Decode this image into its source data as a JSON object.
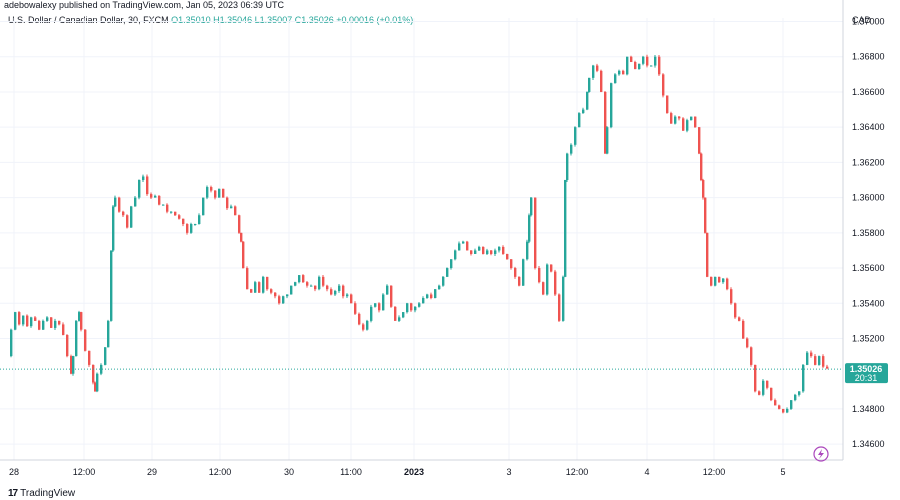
{
  "attribution": "adebowalexy published on TradingView.com, Jan 05, 2023 06:39 UTC",
  "legend": {
    "symbol": "U.S. Dollar / Canadian Dollar, 30, FXCM",
    "ohlc": "O1.35010  H1.35046  L1.35007  C1.35026  +0.00016 (+0.01%)"
  },
  "currency": "CAD",
  "footer": {
    "brand": "TradingView",
    "icon": "tradingview-logo-icon"
  },
  "last_price": {
    "value": "1.35026",
    "countdown": "20:31"
  },
  "colors": {
    "up": "#26a69a",
    "down": "#ef5350",
    "grid": "#f0f3fa",
    "price_label": "#26a69a",
    "lightning": "#ab47bc"
  },
  "lightning_icon": "lightning-bolt-icon",
  "chart_data": {
    "type": "candlestick",
    "title": "U.S. Dollar / Canadian Dollar, 30, FXCM",
    "ylabel": "CAD",
    "ylim": [
      1.3451,
      1.3702
    ],
    "y_ticks": [
      "1.37000",
      "1.36800",
      "1.36600",
      "1.36400",
      "1.36200",
      "1.36000",
      "1.35800",
      "1.35600",
      "1.35400",
      "1.35200",
      "1.34800",
      "1.34600"
    ],
    "x_ticks": [
      "28",
      "12:00",
      "29",
      "12:00",
      "30",
      "11:00",
      "2023",
      "3",
      "12:00",
      "4",
      "12:00",
      "5"
    ],
    "grid": true,
    "series": [
      {
        "values": [
          [
            0,
            1.351
          ],
          [
            2,
            1.3525
          ],
          [
            6,
            1.3535
          ],
          [
            10,
            1.3528
          ],
          [
            14,
            1.3533
          ],
          [
            18,
            1.3527
          ],
          [
            22,
            1.3532
          ],
          [
            26,
            1.353
          ],
          [
            30,
            1.3525
          ],
          [
            34,
            1.353
          ],
          [
            38,
            1.3532
          ],
          [
            42,
            1.3526
          ],
          [
            46,
            1.353
          ],
          [
            50,
            1.3528
          ],
          [
            54,
            1.3522
          ],
          [
            58,
            1.351
          ],
          [
            62,
            1.35
          ],
          [
            64,
            1.351
          ],
          [
            67,
            1.353
          ],
          [
            70,
            1.3535
          ],
          [
            72,
            1.3525
          ],
          [
            76,
            1.3513
          ],
          [
            80,
            1.3505
          ],
          [
            84,
            1.3495
          ],
          [
            86,
            1.349
          ],
          [
            88,
            1.35
          ],
          [
            92,
            1.3505
          ],
          [
            96,
            1.3515
          ],
          [
            99,
            1.353
          ],
          [
            102,
            1.357
          ],
          [
            104,
            1.3595
          ],
          [
            106,
            1.36
          ],
          [
            110,
            1.3592
          ],
          [
            114,
            1.359
          ],
          [
            118,
            1.3583
          ],
          [
            122,
            1.3595
          ],
          [
            126,
            1.36
          ],
          [
            130,
            1.361
          ],
          [
            134,
            1.3612
          ],
          [
            138,
            1.3602
          ],
          [
            142,
            1.36
          ],
          [
            146,
            1.3601
          ],
          [
            150,
            1.3596
          ],
          [
            154,
            1.3596
          ],
          [
            158,
            1.3592
          ],
          [
            162,
            1.3592
          ],
          [
            166,
            1.359
          ],
          [
            170,
            1.3588
          ],
          [
            174,
            1.3585
          ],
          [
            178,
            1.358
          ],
          [
            182,
            1.3585
          ],
          [
            186,
            1.3585
          ],
          [
            190,
            1.359
          ],
          [
            194,
            1.36
          ],
          [
            198,
            1.3606
          ],
          [
            202,
            1.3604
          ],
          [
            206,
            1.36
          ],
          [
            210,
            1.3605
          ],
          [
            214,
            1.36
          ],
          [
            218,
            1.3594
          ],
          [
            222,
            1.3595
          ],
          [
            226,
            1.359
          ],
          [
            230,
            1.358
          ],
          [
            232,
            1.3575
          ],
          [
            234,
            1.356
          ],
          [
            238,
            1.3548
          ],
          [
            242,
            1.3546
          ],
          [
            246,
            1.3552
          ],
          [
            250,
            1.3546
          ],
          [
            254,
            1.3555
          ],
          [
            258,
            1.3548
          ],
          [
            262,
            1.3546
          ],
          [
            266,
            1.3544
          ],
          [
            270,
            1.354
          ],
          [
            274,
            1.3544
          ],
          [
            278,
            1.3545
          ],
          [
            282,
            1.355
          ],
          [
            286,
            1.3552
          ],
          [
            290,
            1.3556
          ],
          [
            294,
            1.3552
          ],
          [
            298,
            1.355
          ],
          [
            302,
            1.355
          ],
          [
            306,
            1.3548
          ],
          [
            310,
            1.3555
          ],
          [
            314,
            1.355
          ],
          [
            318,
            1.3548
          ],
          [
            322,
            1.3545
          ],
          [
            326,
            1.3547
          ],
          [
            330,
            1.355
          ],
          [
            334,
            1.3544
          ],
          [
            338,
            1.3545
          ],
          [
            342,
            1.354
          ],
          [
            346,
            1.3534
          ],
          [
            350,
            1.3528
          ],
          [
            354,
            1.3525
          ],
          [
            358,
            1.353
          ],
          [
            362,
            1.3538
          ],
          [
            366,
            1.354
          ],
          [
            370,
            1.3536
          ],
          [
            374,
            1.3545
          ],
          [
            378,
            1.355
          ],
          [
            382,
            1.3538
          ],
          [
            386,
            1.353
          ],
          [
            390,
            1.3532
          ],
          [
            394,
            1.3535
          ],
          [
            398,
            1.354
          ],
          [
            402,
            1.3536
          ],
          [
            406,
            1.3538
          ],
          [
            410,
            1.354
          ],
          [
            414,
            1.3543
          ],
          [
            418,
            1.3545
          ],
          [
            422,
            1.3543
          ],
          [
            426,
            1.3548
          ],
          [
            430,
            1.355
          ],
          [
            434,
            1.3555
          ],
          [
            438,
            1.356
          ],
          [
            442,
            1.3565
          ],
          [
            446,
            1.357
          ],
          [
            450,
            1.3574
          ],
          [
            454,
            1.3575
          ],
          [
            458,
            1.357
          ],
          [
            462,
            1.3568
          ],
          [
            466,
            1.357
          ],
          [
            470,
            1.3572
          ],
          [
            474,
            1.3568
          ],
          [
            478,
            1.357
          ],
          [
            482,
            1.3568
          ],
          [
            486,
            1.357
          ],
          [
            490,
            1.3572
          ],
          [
            494,
            1.3568
          ],
          [
            498,
            1.3565
          ],
          [
            502,
            1.356
          ],
          [
            506,
            1.3555
          ],
          [
            510,
            1.355
          ],
          [
            514,
            1.3565
          ],
          [
            518,
            1.3575
          ],
          [
            520,
            1.359
          ],
          [
            522,
            1.36
          ],
          [
            526,
            1.356
          ],
          [
            530,
            1.3552
          ],
          [
            534,
            1.3545
          ],
          [
            538,
            1.3562
          ],
          [
            542,
            1.3558
          ],
          [
            546,
            1.3545
          ],
          [
            550,
            1.353
          ],
          [
            554,
            1.3555
          ],
          [
            556,
            1.361
          ],
          [
            558,
            1.3625
          ],
          [
            562,
            1.363
          ],
          [
            566,
            1.364
          ],
          [
            570,
            1.3648
          ],
          [
            574,
            1.365
          ],
          [
            578,
            1.366
          ],
          [
            580,
            1.3668
          ],
          [
            584,
            1.3675
          ],
          [
            588,
            1.3672
          ],
          [
            592,
            1.366
          ],
          [
            596,
            1.3625
          ],
          [
            598,
            1.364
          ],
          [
            602,
            1.3665
          ],
          [
            606,
            1.367
          ],
          [
            610,
            1.3672
          ],
          [
            614,
            1.367
          ],
          [
            618,
            1.368
          ],
          [
            622,
            1.3677
          ],
          [
            626,
            1.3673
          ],
          [
            630,
            1.3676
          ],
          [
            634,
            1.368
          ],
          [
            638,
            1.3675
          ],
          [
            642,
            1.3675
          ],
          [
            646,
            1.368
          ],
          [
            650,
            1.367
          ],
          [
            654,
            1.3658
          ],
          [
            658,
            1.3648
          ],
          [
            662,
            1.3642
          ],
          [
            666,
            1.3646
          ],
          [
            670,
            1.3645
          ],
          [
            674,
            1.3638
          ],
          [
            678,
            1.3644
          ],
          [
            682,
            1.3646
          ],
          [
            686,
            1.364
          ],
          [
            690,
            1.3625
          ],
          [
            692,
            1.361
          ],
          [
            694,
            1.36
          ],
          [
            696,
            1.358
          ],
          [
            698,
            1.3555
          ],
          [
            702,
            1.355
          ],
          [
            706,
            1.3555
          ],
          [
            710,
            1.3552
          ],
          [
            714,
            1.3554
          ],
          [
            718,
            1.3548
          ],
          [
            722,
            1.354
          ],
          [
            726,
            1.3532
          ],
          [
            730,
            1.353
          ],
          [
            734,
            1.352
          ],
          [
            738,
            1.3515
          ],
          [
            742,
            1.3505
          ],
          [
            746,
            1.349
          ],
          [
            750,
            1.3488
          ],
          [
            754,
            1.3496
          ],
          [
            758,
            1.3492
          ],
          [
            762,
            1.3485
          ],
          [
            766,
            1.3482
          ],
          [
            770,
            1.348
          ],
          [
            774,
            1.3478
          ],
          [
            778,
            1.348
          ],
          [
            782,
            1.3485
          ],
          [
            786,
            1.3488
          ],
          [
            790,
            1.349
          ],
          [
            794,
            1.3505
          ],
          [
            798,
            1.3512
          ],
          [
            802,
            1.351
          ],
          [
            806,
            1.3505
          ],
          [
            810,
            1.351
          ],
          [
            814,
            1.3504
          ],
          [
            818,
            1.3503
          ]
        ]
      }
    ]
  }
}
